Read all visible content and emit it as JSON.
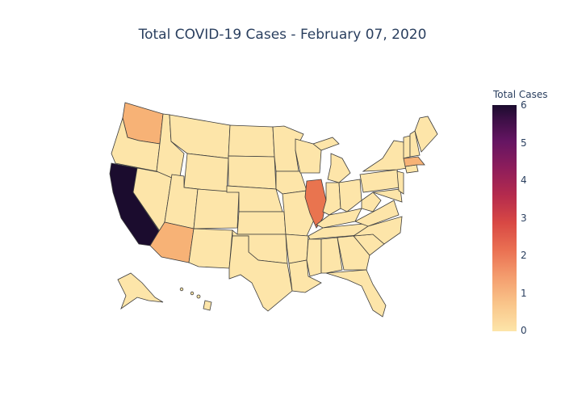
{
  "title": "Total COVID-19 Cases - February 07, 2020",
  "colorbar": {
    "title": "Total Cases",
    "ticks": [
      "0",
      "1",
      "2",
      "3",
      "4",
      "5",
      "6"
    ],
    "range": [
      0,
      6
    ]
  },
  "colors": {
    "zero": "#fde5a9",
    "one": "#f7b276",
    "two": "#e9744f",
    "six": "#1b0c2e"
  },
  "chart_data": {
    "type": "choropleth",
    "title": "Total COVID-19 Cases - February 07, 2020",
    "legend_title": "Total Cases",
    "zmin": 0,
    "zmax": 6,
    "values": {
      "California": 6,
      "Illinois": 2,
      "Washington": 1,
      "Arizona": 1,
      "Massachusetts": 1,
      "All other states": 0
    }
  }
}
